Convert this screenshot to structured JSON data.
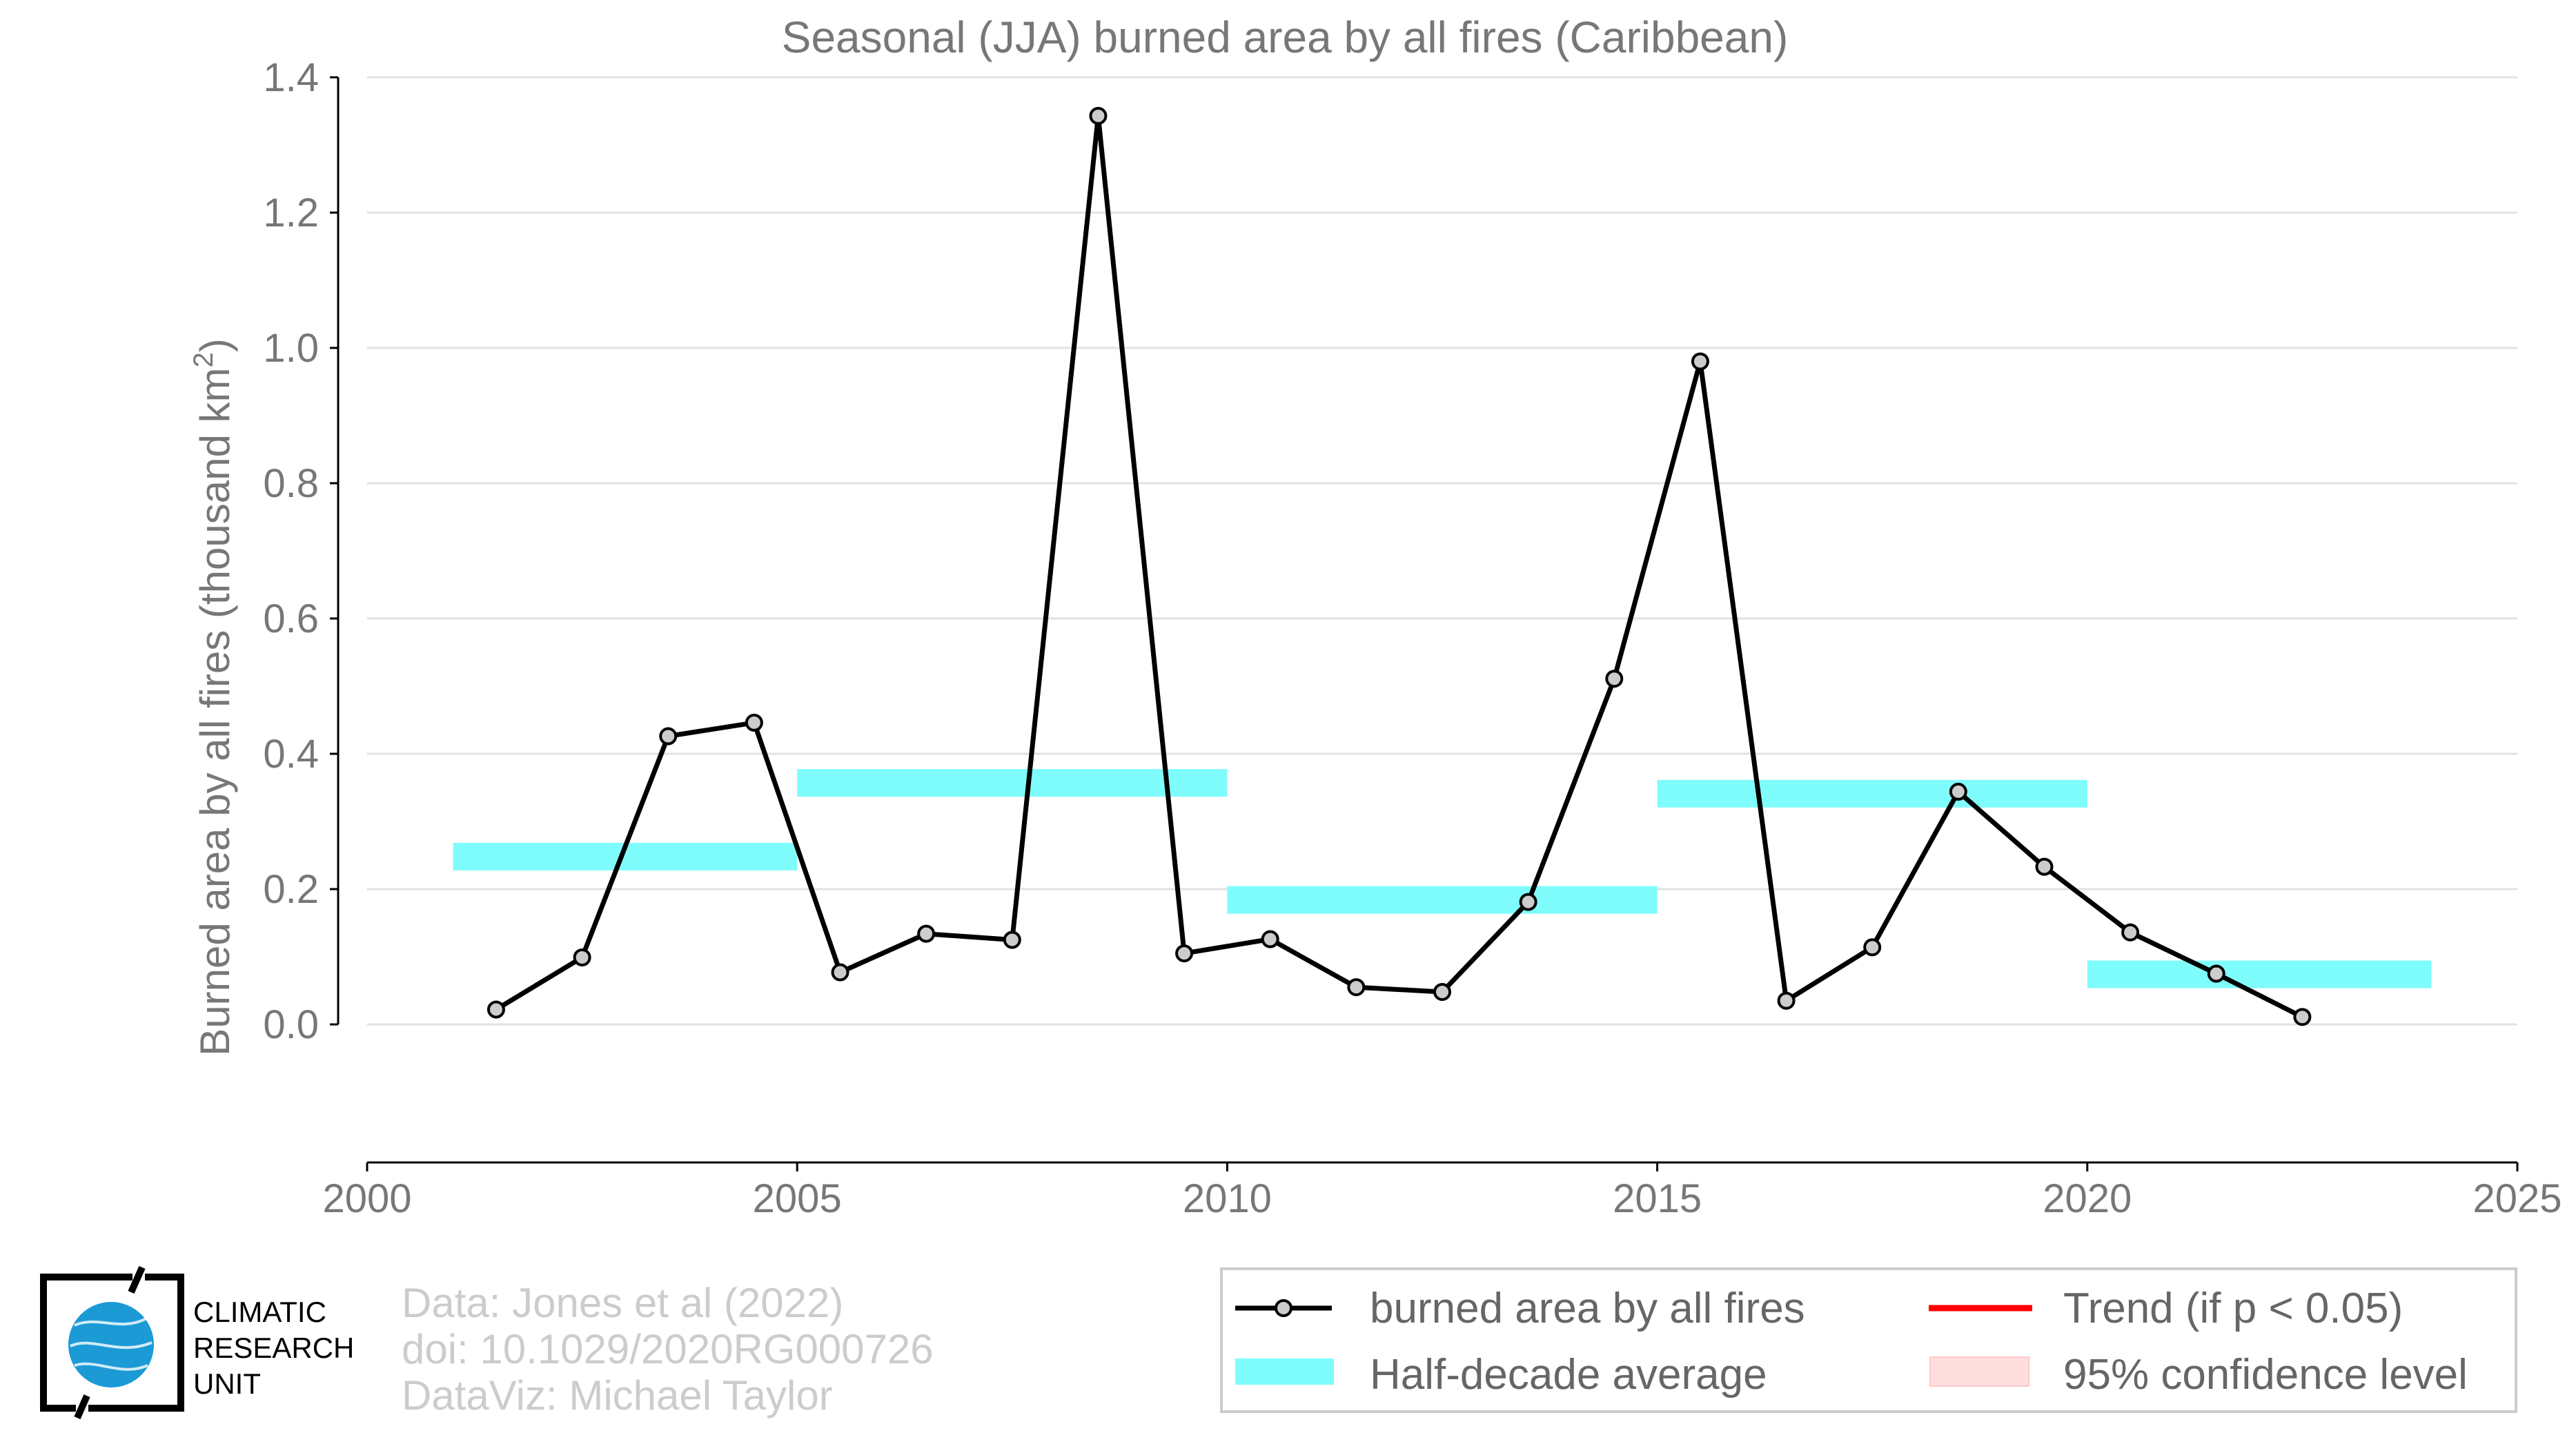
{
  "chart_data": {
    "type": "line",
    "title": "Seasonal (JJA) burned area by all fires (Caribbean)",
    "ylabel": "Burned area by all fires (thousand km",
    "ylabel_sup": "2",
    "ylabel_close": ")",
    "xlim": [
      2000,
      2025
    ],
    "ylim": [
      -0.1,
      1.4
    ],
    "x_ticks": [
      2000,
      2005,
      2010,
      2015,
      2020,
      2025
    ],
    "y_ticks": [
      0.0,
      0.2,
      0.4,
      0.6,
      0.8,
      1.0,
      1.2,
      1.4
    ],
    "y_tick_labels": [
      "0.0",
      "0.2",
      "0.4",
      "0.6",
      "0.8",
      "1.0",
      "1.2",
      "1.4"
    ],
    "grid": "horizontal",
    "series": [
      {
        "name": "burned area by all fires",
        "color": "#000000",
        "marker_fill": "#cccccc",
        "x": [
          2001.5,
          2002.5,
          2003.5,
          2004.5,
          2005.5,
          2006.5,
          2007.5,
          2008.5,
          2009.5,
          2010.5,
          2011.5,
          2012.5,
          2013.5,
          2014.5,
          2015.5,
          2016.5,
          2017.5,
          2018.5,
          2019.5,
          2020.5,
          2021.5,
          2022.5
        ],
        "values": [
          0.022,
          0.099,
          0.426,
          0.446,
          0.077,
          0.134,
          0.125,
          1.343,
          0.105,
          0.126,
          0.055,
          0.048,
          0.181,
          0.511,
          0.98,
          0.035,
          0.114,
          0.344,
          0.233,
          0.136,
          0.075,
          0.011
        ]
      }
    ],
    "half_decade_average": {
      "name": "Half-decade average",
      "color": "#7ffcfc",
      "segments": [
        {
          "x0": 2001,
          "x1": 2005,
          "value": 0.248
        },
        {
          "x0": 2005,
          "x1": 2010,
          "value": 0.357
        },
        {
          "x0": 2010,
          "x1": 2015,
          "value": 0.184
        },
        {
          "x0": 2015,
          "x1": 2020,
          "value": 0.341
        },
        {
          "x0": 2020,
          "x1": 2024,
          "value": 0.074
        }
      ]
    },
    "legend": {
      "placement": "bottom-right",
      "items": [
        {
          "key": "series",
          "label": "burned area by all fires"
        },
        {
          "key": "trend",
          "label": "Trend (if p < 0.05)",
          "color": "#ff0000"
        },
        {
          "key": "halfdecade",
          "label": "Half-decade average",
          "color": "#7ffcfc"
        },
        {
          "key": "ci",
          "label": "95% confidence level",
          "color": "#ffdede"
        }
      ]
    }
  },
  "credits": {
    "line1": "Data: Jones et al (2022)",
    "line2": "doi: 10.1029/2020RG000726",
    "line3": "DataViz: Michael Taylor"
  },
  "logo": {
    "line1": "CLIMATIC",
    "line2": "RESEARCH",
    "line3": "UNIT"
  }
}
